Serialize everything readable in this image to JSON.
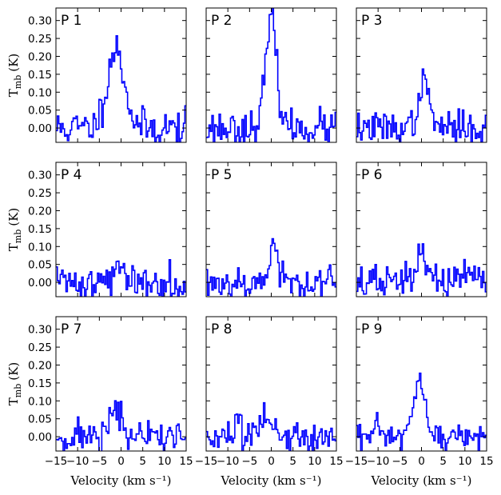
{
  "chart_data": {
    "type": "line",
    "layout": "3x3 grid, shared axes",
    "xlabel": "Velocity (km s⁻¹)",
    "ylabel_main": "T",
    "ylabel_sub": "mb",
    "ylabel_unit": "(K)",
    "xlim": [
      -15,
      15
    ],
    "ylim": [
      -0.04,
      0.335
    ],
    "xticks": [
      -15,
      -10,
      -5,
      0,
      5,
      10,
      15
    ],
    "xtick_labels": [
      "−15",
      "−10",
      "−5",
      "0",
      "5",
      "10",
      "15"
    ],
    "yticks": [
      0.0,
      0.05,
      0.1,
      0.15,
      0.2,
      0.25,
      0.3
    ],
    "ytick_labels": [
      "0.00",
      "0.05",
      "0.10",
      "0.15",
      "0.20",
      "0.25",
      "0.30"
    ],
    "series_color": "#0000ff",
    "panels": [
      {
        "label": "P 1",
        "noise": 0.026,
        "peak": 0.22,
        "center": -1.2,
        "width": 2.0,
        "seed": 11
      },
      {
        "label": "P 2",
        "noise": 0.024,
        "peak": 0.295,
        "center": 0.0,
        "width": 1.3,
        "seed": 23
      },
      {
        "label": "P 3",
        "noise": 0.022,
        "peak": 0.12,
        "center": 0.6,
        "width": 1.3,
        "seed": 37
      },
      {
        "label": "P 4",
        "noise": 0.026,
        "peak": 0.05,
        "center": -0.3,
        "width": 1.0,
        "seed": 41
      },
      {
        "label": "P 5",
        "noise": 0.025,
        "peak": 0.11,
        "center": 0.4,
        "width": 0.9,
        "seed": 53
      },
      {
        "label": "P 6",
        "noise": 0.025,
        "peak": 0.07,
        "center": 0.3,
        "width": 1.6,
        "seed": 67
      },
      {
        "label": "P 7",
        "noise": 0.024,
        "peak": 0.07,
        "center": -1.5,
        "width": 1.5,
        "seed": 71
      },
      {
        "label": "P 8",
        "noise": 0.025,
        "peak": 0.05,
        "center": -1.0,
        "width": 1.8,
        "seed": 83
      },
      {
        "label": "P 9",
        "noise": 0.022,
        "peak": 0.15,
        "center": -0.6,
        "width": 1.2,
        "seed": 97
      }
    ]
  }
}
